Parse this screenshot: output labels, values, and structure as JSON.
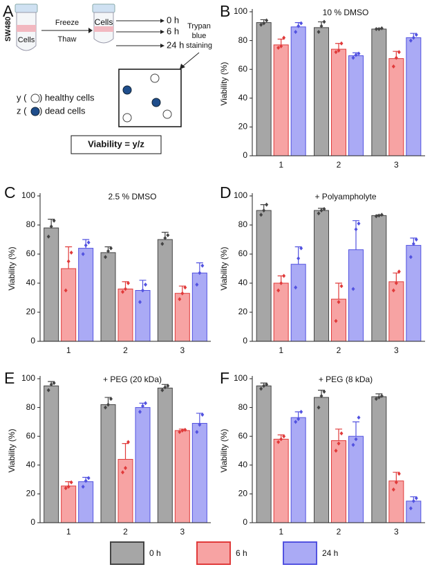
{
  "schematic": {
    "panel": "A",
    "cell_line": "SW480",
    "tube_1": "Cells",
    "tube_2": "Cells",
    "step_1": "Freeze",
    "step_2": "Thaw",
    "times": [
      "0 h",
      "6 h",
      "24 h"
    ],
    "stain": [
      "Trypan",
      "blue",
      "staining"
    ],
    "healthy_prefix": "y (",
    "healthy_suffix": ") healthy cells",
    "dead_prefix": "z (",
    "dead_suffix": ") dead cells",
    "formula": "Viability = y/z"
  },
  "chart_data": [
    {
      "type": "bar",
      "panel": "B",
      "title": "10 % DMSO",
      "y_label": "Viability (%)",
      "categories": [
        "1",
        "2",
        "3"
      ],
      "ylim": [
        0,
        100
      ],
      "yticks": [
        0,
        20,
        40,
        60,
        80,
        100
      ],
      "series": [
        {
          "name": "0 h",
          "color": "#a6a6a6",
          "edge": "#444444",
          "values": [
            92.5,
            89,
            88
          ],
          "errors": [
            2,
            4,
            0.5
          ],
          "points": [
            [
              91,
              92,
              94
            ],
            [
              86,
              90,
              93
            ],
            [
              88,
              88,
              88.5
            ]
          ]
        },
        {
          "name": "6 h",
          "color": "#f7a3a3",
          "edge": "#e03a3a",
          "values": [
            77,
            74,
            67.5
          ],
          "errors": [
            4,
            4,
            5
          ],
          "points": [
            [
              75,
              76,
              82
            ],
            [
              72,
              73,
              78
            ],
            [
              62,
              68,
              72
            ]
          ]
        },
        {
          "name": "24 h",
          "color": "#aaaaf5",
          "edge": "#5252e0",
          "values": [
            89.5,
            69.5,
            82
          ],
          "errors": [
            3,
            2,
            3
          ],
          "points": [
            [
              86,
              90,
              92
            ],
            [
              68,
              70,
              71
            ],
            [
              80,
              82,
              84
            ]
          ]
        }
      ]
    },
    {
      "type": "bar",
      "panel": "C",
      "title": "2.5 % DMSO",
      "y_label": "Viability (%)",
      "categories": [
        "1",
        "2",
        "3"
      ],
      "ylim": [
        0,
        100
      ],
      "yticks": [
        0,
        20,
        40,
        60,
        80,
        100
      ],
      "series": [
        {
          "color": "#a6a6a6",
          "edge": "#444444",
          "values": [
            78,
            61,
            70
          ],
          "errors": [
            6,
            4,
            5
          ],
          "points": [
            [
              72,
              79,
              83
            ],
            [
              58,
              62,
              64
            ],
            [
              67,
              71,
              73
            ]
          ]
        },
        {
          "color": "#f7a3a3",
          "edge": "#e03a3a",
          "values": [
            50,
            36,
            33
          ],
          "errors": [
            15,
            5,
            5
          ],
          "points": [
            [
              35,
              55,
              61
            ],
            [
              34,
              36,
              40
            ],
            [
              29,
              33,
              37
            ]
          ]
        },
        {
          "color": "#aaaaf5",
          "edge": "#5252e0",
          "values": [
            64,
            35,
            47
          ],
          "errors": [
            6,
            7,
            7
          ],
          "points": [
            [
              60,
              66,
              68
            ],
            [
              27,
              35,
              39
            ],
            [
              39,
              47,
              52
            ]
          ]
        }
      ]
    },
    {
      "type": "bar",
      "panel": "D",
      "title": "+ Polyampholyte",
      "y_label": "Viability (%)",
      "categories": [
        "1",
        "2",
        "3"
      ],
      "ylim": [
        0,
        100
      ],
      "yticks": [
        0,
        20,
        40,
        60,
        80,
        100
      ],
      "series": [
        {
          "color": "#a6a6a6",
          "edge": "#444444",
          "values": [
            90,
            90,
            86.5
          ],
          "errors": [
            4,
            1.5,
            0.5
          ],
          "points": [
            [
              87,
              90,
              94
            ],
            [
              88,
              90,
              91
            ],
            [
              86,
              86.5,
              87
            ]
          ]
        },
        {
          "color": "#f7a3a3",
          "edge": "#e03a3a",
          "values": [
            40,
            29,
            41
          ],
          "errors": [
            5,
            11,
            6
          ],
          "points": [
            [
              35,
              40,
              45
            ],
            [
              14,
              27,
              38
            ],
            [
              35,
              40,
              48
            ]
          ]
        },
        {
          "color": "#aaaaf5",
          "edge": "#5252e0",
          "values": [
            53,
            63,
            66
          ],
          "errors": [
            12,
            20,
            5
          ],
          "points": [
            [
              37,
              57,
              64
            ],
            [
              36,
              77,
              81
            ],
            [
              58,
              67,
              70
            ]
          ]
        }
      ]
    },
    {
      "type": "bar",
      "panel": "E",
      "title": "+ PEG (20 kDa)",
      "y_label": "Viability (%)",
      "categories": [
        "1",
        "2",
        "3"
      ],
      "ylim": [
        0,
        100
      ],
      "yticks": [
        0,
        20,
        40,
        60,
        80,
        100
      ],
      "series": [
        {
          "color": "#a6a6a6",
          "edge": "#444444",
          "values": [
            95,
            82,
            93.5
          ],
          "errors": [
            3,
            5,
            2.5
          ],
          "points": [
            [
              92,
              96,
              97
            ],
            [
              80,
              82,
              86
            ],
            [
              92,
              94,
              95
            ]
          ]
        },
        {
          "color": "#f7a3a3",
          "edge": "#e03a3a",
          "values": [
            25.5,
            44,
            64
          ],
          "errors": [
            3,
            11,
            1
          ],
          "points": [
            [
              24,
              25,
              28
            ],
            [
              35,
              38,
              56
            ],
            [
              63,
              64,
              64.5
            ]
          ]
        },
        {
          "color": "#aaaaf5",
          "edge": "#5252e0",
          "values": [
            28.5,
            80,
            69
          ],
          "errors": [
            3,
            3,
            7
          ],
          "points": [
            [
              25,
              29,
              31
            ],
            [
              77,
              81,
              83
            ],
            [
              63,
              68,
              75
            ]
          ]
        }
      ]
    },
    {
      "type": "bar",
      "panel": "F",
      "title": "+ PEG (8 kDa)",
      "y_label": "Viability (%)",
      "categories": [
        "1",
        "2",
        "3"
      ],
      "ylim": [
        0,
        100
      ],
      "yticks": [
        0,
        20,
        40,
        60,
        80,
        100
      ],
      "series": [
        {
          "color": "#a6a6a6",
          "edge": "#444444",
          "values": [
            95,
            87,
            87.5
          ],
          "errors": [
            2,
            5,
            2
          ],
          "points": [
            [
              93,
              95,
              96
            ],
            [
              80,
              88,
              91
            ],
            [
              86,
              87,
              88
            ]
          ]
        },
        {
          "color": "#f7a3a3",
          "edge": "#e03a3a",
          "values": [
            58,
            57,
            29
          ],
          "errors": [
            3,
            8,
            6
          ],
          "points": [
            [
              56,
              58,
              60
            ],
            [
              50,
              55,
              62
            ],
            [
              23,
              28,
              34
            ]
          ]
        },
        {
          "color": "#aaaaf5",
          "edge": "#5252e0",
          "values": [
            73,
            60,
            15
          ],
          "errors": [
            4,
            10,
            3
          ],
          "points": [
            [
              70,
              72,
              77
            ],
            [
              54,
              58,
              73
            ],
            [
              10,
              15,
              17
            ]
          ]
        }
      ]
    }
  ]
}
